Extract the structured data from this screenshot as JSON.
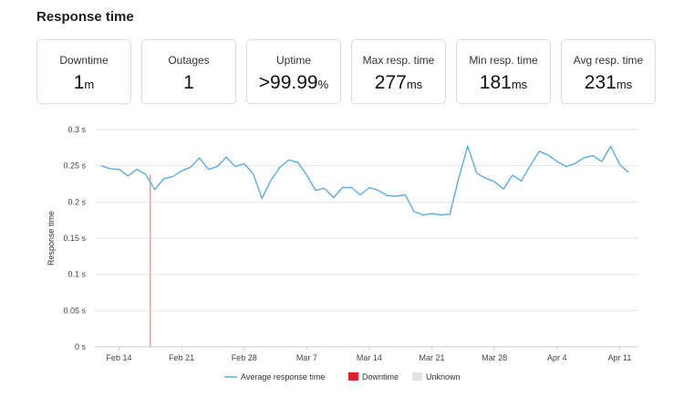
{
  "page": {
    "title": "Response time"
  },
  "stats": [
    {
      "label": "Downtime",
      "value": "1",
      "unit": "m"
    },
    {
      "label": "Outages",
      "value": "1",
      "unit": ""
    },
    {
      "label": "Uptime",
      "value": ">99.99",
      "unit": "%"
    },
    {
      "label": "Max resp. time",
      "value": "277",
      "unit": "ms"
    },
    {
      "label": "Min resp. time",
      "value": "181",
      "unit": "ms"
    },
    {
      "label": "Avg resp. time",
      "value": "231",
      "unit": "ms"
    }
  ],
  "colors": {
    "line": "#5aaee2",
    "downtime": "#d9252d",
    "unknown": "#e2e2e2",
    "grid": "#e6e6e6"
  },
  "chart_data": {
    "type": "line",
    "ylabel": "Response time",
    "ylim": [
      0,
      0.3
    ],
    "yticks": [
      0,
      0.05,
      0.1,
      0.15,
      0.2,
      0.25,
      0.3
    ],
    "ytick_labels": [
      "0 s",
      "0.05 s",
      "0.1 s",
      "0.15 s",
      "0.2 s",
      "0.25 s",
      "0.3 s"
    ],
    "xtick_labels": [
      "Feb 14",
      "Feb 21",
      "Feb 28",
      "Mar 7",
      "Mar 14",
      "Mar 21",
      "Mar 28",
      "Apr 4",
      "Apr 11"
    ],
    "xtick_days": [
      0,
      7,
      14,
      21,
      28,
      35,
      42,
      49,
      56
    ],
    "xlim": [
      -2.7,
      58.1
    ],
    "grid": true,
    "legend_position": "bottom",
    "series": [
      {
        "name": "Average response time",
        "x": [
          -2,
          -1,
          0,
          1,
          2,
          3,
          4,
          5,
          6,
          7,
          8,
          9,
          10,
          11,
          12,
          13,
          14,
          15,
          16,
          17,
          18,
          19,
          20,
          21,
          22,
          23,
          24,
          25,
          26,
          27,
          28,
          29,
          30,
          31,
          32,
          33,
          34,
          35,
          36,
          37,
          38,
          39,
          40,
          41,
          42,
          43,
          44,
          45,
          46,
          47,
          48,
          49,
          50,
          51,
          52,
          53,
          54,
          55,
          56,
          57
        ],
        "values": [
          0.25,
          0.246,
          0.245,
          0.236,
          0.245,
          0.238,
          0.217,
          0.232,
          0.235,
          0.243,
          0.248,
          0.261,
          0.245,
          0.249,
          0.262,
          0.249,
          0.253,
          0.239,
          0.205,
          0.23,
          0.248,
          0.258,
          0.255,
          0.237,
          0.216,
          0.219,
          0.206,
          0.22,
          0.22,
          0.21,
          0.22,
          0.216,
          0.209,
          0.208,
          0.21,
          0.187,
          0.182,
          0.184,
          0.182,
          0.183,
          0.233,
          0.277,
          0.24,
          0.233,
          0.228,
          0.218,
          0.237,
          0.229,
          0.25,
          0.27,
          0.265,
          0.256,
          0.249,
          0.253,
          0.261,
          0.264,
          0.256,
          0.277,
          0.252,
          0.241
        ]
      }
    ],
    "downtime_events": [
      3.5
    ],
    "legend": [
      {
        "label": "Average response time",
        "kind": "line"
      },
      {
        "label": "Downtime",
        "kind": "downtime"
      },
      {
        "label": "Unknown",
        "kind": "unknown"
      }
    ]
  }
}
